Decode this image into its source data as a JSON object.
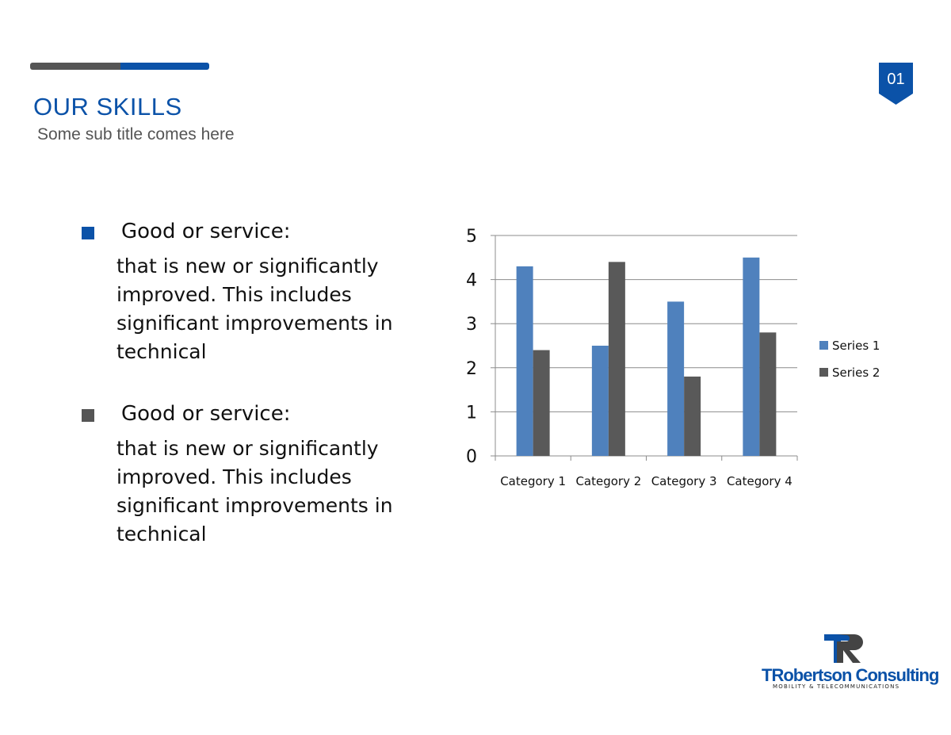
{
  "header": {
    "title": "OUR SKILLS",
    "subtitle": "Some sub title comes here",
    "page_number": "01"
  },
  "bullets": [
    {
      "heading": "Good or service:",
      "body": " that is new or significantly\nimproved. This includes\nsignificant improvements in\ntechnical"
    },
    {
      "heading": "Good or service:",
      "body": " that is new or significantly\nimproved. This includes\nsignificant improvements in\ntechnical"
    }
  ],
  "colors": {
    "brand_blue": "#0b52a8",
    "dark_gray": "#555555",
    "series1": "#4f81bd",
    "series2": "#595959"
  },
  "chart_data": {
    "type": "bar",
    "categories": [
      "Category 1",
      "Category 2",
      "Category 3",
      "Category 4"
    ],
    "series": [
      {
        "name": "Series 1",
        "values": [
          4.3,
          2.5,
          3.5,
          4.5
        ]
      },
      {
        "name": "Series 2",
        "values": [
          2.4,
          4.4,
          1.8,
          2.8
        ]
      }
    ],
    "ylim": [
      0,
      5
    ],
    "yticks": [
      "0",
      "1",
      "2",
      "3",
      "4",
      "5"
    ],
    "grid": true,
    "legend": "right"
  },
  "logo": {
    "name": "TRobertson Consulting",
    "tagline": "MOBILITY & TELECOMMUNICATIONS"
  }
}
